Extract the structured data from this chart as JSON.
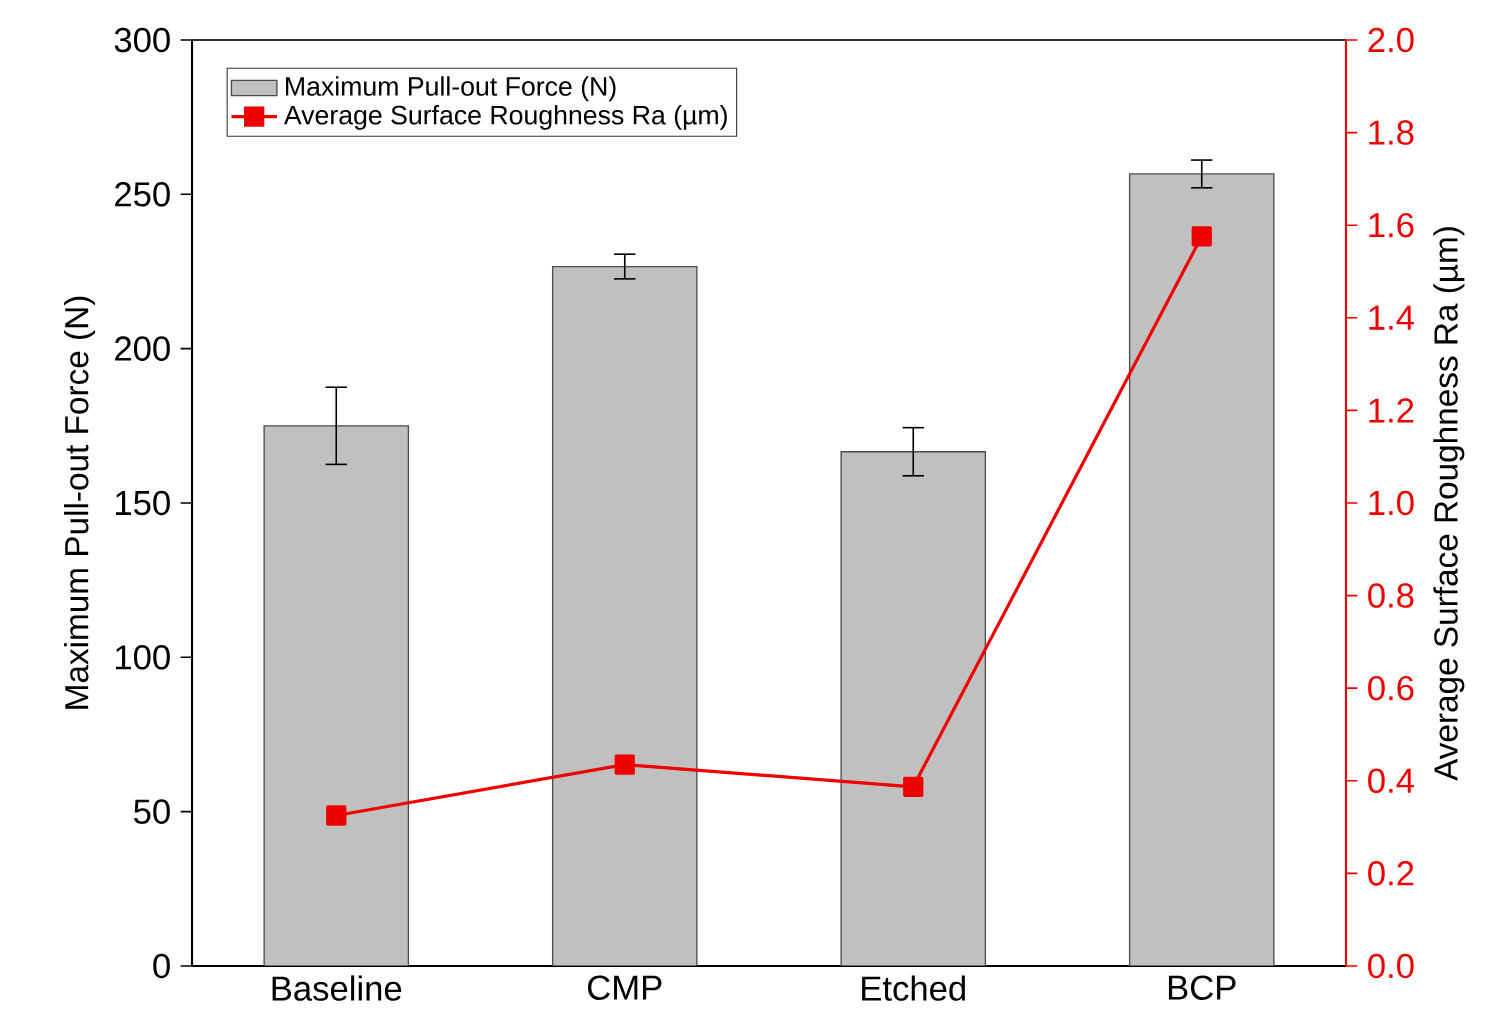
{
  "chart_data": {
    "type": "bar",
    "categories": [
      "Baseline",
      "CMP",
      "Etched",
      "BCP"
    ],
    "series": [
      {
        "name": "Maximum Pull-out Force (N)",
        "color": "#c0c0c0",
        "values": [
          175,
          226.6,
          166.6,
          256.6
        ],
        "errors": [
          12.5,
          4,
          7.8,
          4.5
        ]
      },
      {
        "name": "Average Surface Roughness Ra (µm)",
        "type": "line",
        "axis": "y2",
        "color": "#ee0000",
        "marker": "square",
        "values": [
          0.325,
          0.435,
          0.387,
          1.576
        ]
      }
    ],
    "ylabel": "Maximum Pull-out Force (N)",
    "y2label": "Average Surface Roughness Ra (µm)",
    "ylim": [
      0,
      300
    ],
    "yticks": [
      0,
      50,
      100,
      150,
      200,
      250,
      300
    ],
    "y2lim": [
      0,
      2.0
    ],
    "y2ticks": [
      {
        "value": 0,
        "label": "0.0"
      },
      {
        "value": 0.2,
        "label": "0.2"
      },
      {
        "value": 0.4,
        "label": "0.4"
      },
      {
        "value": 0.6,
        "label": "0.6"
      },
      {
        "value": 0.8,
        "label": "0.8"
      },
      {
        "value": 1.0,
        "label": "1.0"
      },
      {
        "value": 1.2,
        "label": "1.2"
      },
      {
        "value": 1.4,
        "label": "1.4"
      },
      {
        "value": 1.6,
        "label": "1.6"
      },
      {
        "value": 1.8,
        "label": "1.8"
      },
      {
        "value": 2.0,
        "label": "2.0"
      }
    ],
    "legend": "top left"
  }
}
